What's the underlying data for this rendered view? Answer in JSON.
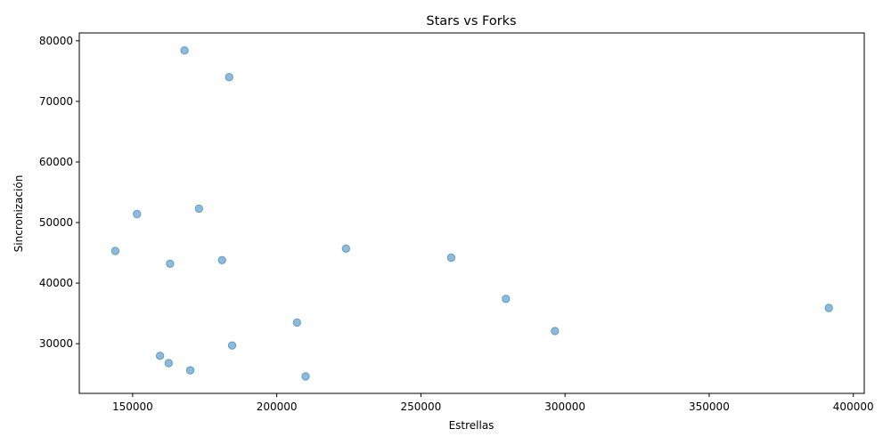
{
  "chart_data": {
    "type": "scatter",
    "title": "Stars vs Forks",
    "xlabel": "Estrellas",
    "ylabel": "Sincronización",
    "xlim": [
      131500,
      403800
    ],
    "ylim": [
      21800,
      81300
    ],
    "xticks": [
      150000,
      200000,
      250000,
      300000,
      350000,
      400000
    ],
    "yticks": [
      30000,
      40000,
      50000,
      60000,
      70000,
      80000
    ],
    "grid": false,
    "color": "#1f77b4",
    "points": [
      {
        "x": 168000,
        "y": 78400
      },
      {
        "x": 183500,
        "y": 74000
      },
      {
        "x": 173000,
        "y": 52300
      },
      {
        "x": 151500,
        "y": 51400
      },
      {
        "x": 144000,
        "y": 45300
      },
      {
        "x": 163000,
        "y": 43200
      },
      {
        "x": 181000,
        "y": 43800
      },
      {
        "x": 224000,
        "y": 45700
      },
      {
        "x": 260500,
        "y": 44200
      },
      {
        "x": 279500,
        "y": 37400
      },
      {
        "x": 391500,
        "y": 35900
      },
      {
        "x": 207000,
        "y": 33500
      },
      {
        "x": 296500,
        "y": 32100
      },
      {
        "x": 184500,
        "y": 29700
      },
      {
        "x": 159500,
        "y": 28000
      },
      {
        "x": 162500,
        "y": 26800
      },
      {
        "x": 170000,
        "y": 25600
      },
      {
        "x": 210000,
        "y": 24600
      }
    ]
  }
}
